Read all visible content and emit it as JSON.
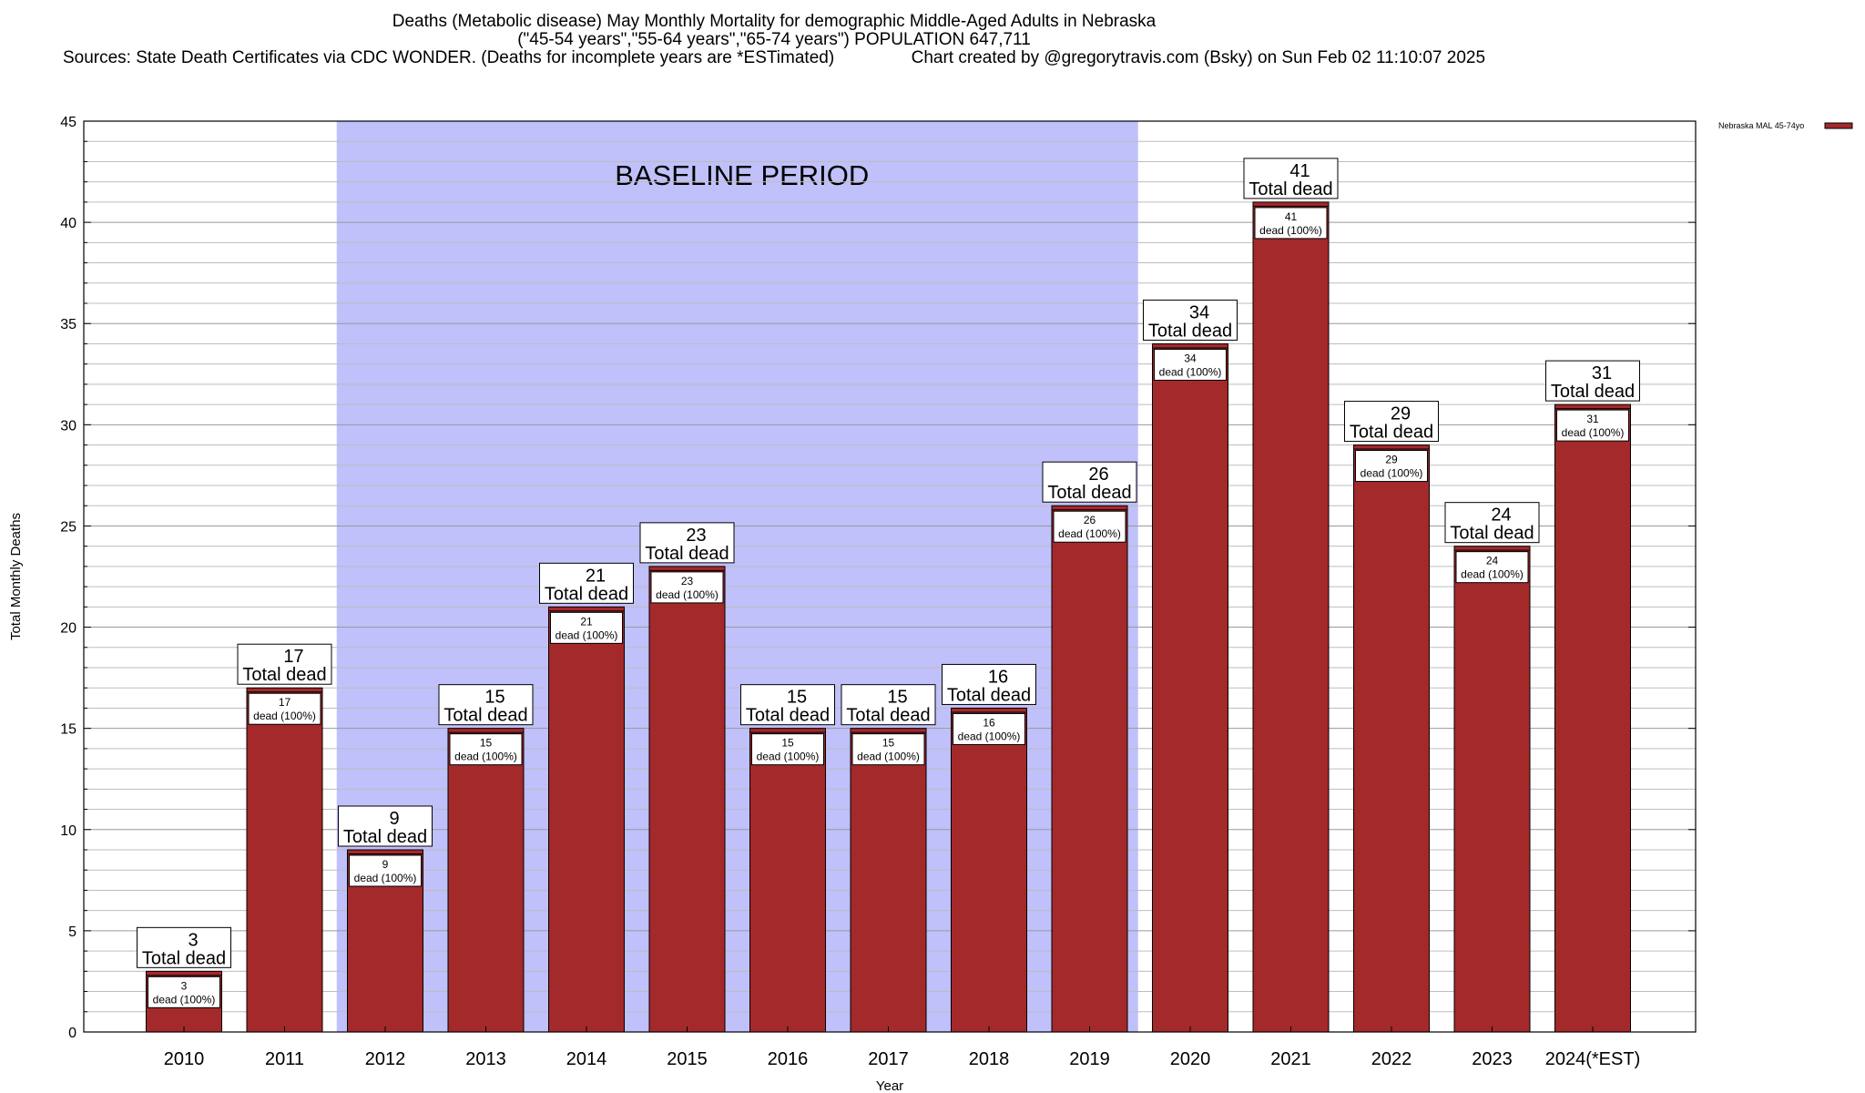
{
  "chart_data": {
    "type": "bar",
    "title_lines": [
      "Deaths (Metabolic disease) May Monthly Mortality for demographic Middle-Aged Adults in Nebraska",
      "(\"45-54 years\",\"55-64 years\",\"65-74 years\") POPULATION 647,711",
      "Sources: State Death Certificates via CDC WONDER. (Deaths for incomplete years are *ESTimated)                Chart created by @gregorytravis.com (Bsky) on Sun Feb 02 11:10:07 2025"
    ],
    "xlabel": "Year",
    "ylabel": "Total Monthly Deaths",
    "ylim": [
      0,
      45
    ],
    "y_ticks": [
      0,
      5,
      10,
      15,
      20,
      25,
      30,
      35,
      40,
      45
    ],
    "y_minor_step": 1,
    "grid": true,
    "categories": [
      "2010",
      "2011",
      "2012",
      "2013",
      "2014",
      "2015",
      "2016",
      "2017",
      "2018",
      "2019",
      "2020",
      "2021",
      "2022",
      "2023",
      "2024(*EST)"
    ],
    "series": [
      {
        "name": "Nebraska MAL 45-74yo",
        "color": "#a4292b",
        "values": [
          3,
          17,
          9,
          15,
          21,
          23,
          15,
          15,
          16,
          26,
          34,
          41,
          29,
          24,
          31
        ]
      }
    ],
    "total_label": "Total dead",
    "inner_label_prefix": "dead",
    "inner_label_pct": "(100%)",
    "baseline": {
      "label": "BASELINE PERIOD",
      "from_category": "2012",
      "to_category": "2019",
      "color": "#c0c0fa"
    },
    "legend_position": "top-right"
  }
}
